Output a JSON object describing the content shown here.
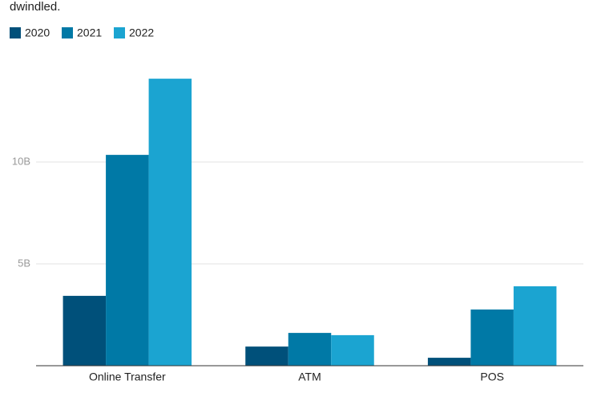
{
  "chart_data": {
    "type": "bar",
    "subtitle": "dwindled.",
    "categories": [
      "Online Transfer",
      "ATM",
      "POS"
    ],
    "series": [
      {
        "name": "2020",
        "color": "#00507a",
        "values": [
          3.43,
          0.94,
          0.39
        ]
      },
      {
        "name": "2021",
        "color": "#0079a6",
        "values": [
          10.35,
          1.61,
          2.76
        ]
      },
      {
        "name": "2022",
        "color": "#1ba4d1",
        "values": [
          14.09,
          1.5,
          3.9
        ]
      }
    ],
    "ylim": [
      0,
      15
    ],
    "yticks": [
      {
        "value": 5,
        "label": "5B"
      },
      {
        "value": 10,
        "label": "10B"
      }
    ],
    "grid": true
  }
}
